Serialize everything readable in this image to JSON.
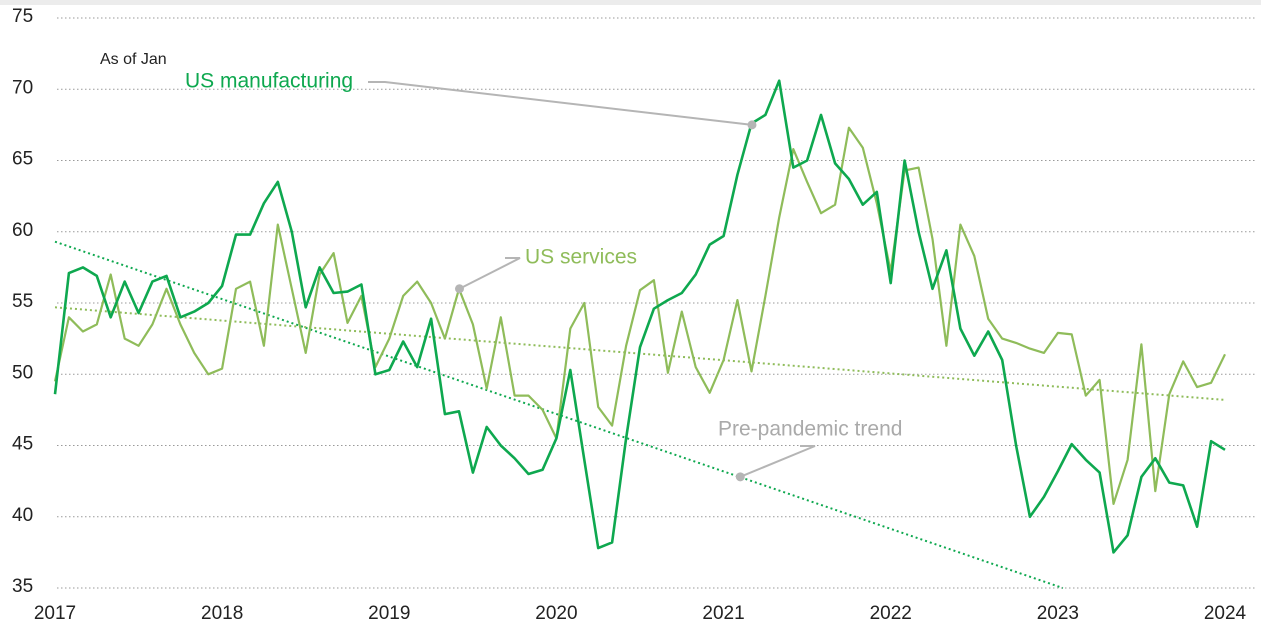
{
  "chart_data": {
    "type": "line",
    "note": "As of Jan",
    "x": [
      2017,
      2017.083,
      2017.167,
      2017.25,
      2017.333,
      2017.417,
      2017.5,
      2017.583,
      2017.667,
      2017.75,
      2017.833,
      2017.917,
      2018,
      2018.083,
      2018.167,
      2018.25,
      2018.333,
      2018.417,
      2018.5,
      2018.583,
      2018.667,
      2018.75,
      2018.833,
      2018.917,
      2019,
      2019.083,
      2019.167,
      2019.25,
      2019.333,
      2019.417,
      2019.5,
      2019.583,
      2019.667,
      2019.75,
      2019.833,
      2019.917,
      2020,
      2020.083,
      2020.167,
      2020.25,
      2020.333,
      2020.417,
      2020.5,
      2020.583,
      2020.667,
      2020.75,
      2020.833,
      2020.917,
      2021,
      2021.083,
      2021.167,
      2021.25,
      2021.333,
      2021.417,
      2021.5,
      2021.583,
      2021.667,
      2021.75,
      2021.833,
      2021.917,
      2022,
      2022.083,
      2022.167,
      2022.25,
      2022.333,
      2022.417,
      2022.5,
      2022.583,
      2022.667,
      2022.75,
      2022.833,
      2022.917,
      2023,
      2023.083,
      2023.167,
      2023.25,
      2023.333,
      2023.417,
      2023.5,
      2023.583,
      2023.667,
      2023.75,
      2023.833,
      2023.917,
      2024
    ],
    "series": [
      {
        "name": "US manufacturing",
        "color": "#0ea84f",
        "label_point": {
          "x": 2021.17,
          "y": 67.5
        },
        "values": [
          48.6,
          57.1,
          57.5,
          56.9,
          54.0,
          56.5,
          54.3,
          56.5,
          56.9,
          54.0,
          54.4,
          55.0,
          56.2,
          59.8,
          59.8,
          62.0,
          63.5,
          60.0,
          54.7,
          57.5,
          55.7,
          55.8,
          56.3,
          50.0,
          50.3,
          52.3,
          50.5,
          53.9,
          47.2,
          47.4,
          43.1,
          46.3,
          45.0,
          44.1,
          43.0,
          43.3,
          45.5,
          50.3,
          44.0,
          37.8,
          38.2,
          45.5,
          51.9,
          54.6,
          55.2,
          55.7,
          57.0,
          59.1,
          59.7,
          64.0,
          67.6,
          68.2,
          70.6,
          64.5,
          65.0,
          68.2,
          64.8,
          63.7,
          61.9,
          62.8,
          56.4,
          65.0,
          60.0,
          56.0,
          58.7,
          53.2,
          51.3,
          53.0,
          51.0,
          45.0,
          40.0,
          41.4,
          43.2,
          45.1,
          44.0,
          43.1,
          37.5,
          38.7,
          42.8,
          44.1,
          42.4,
          42.2,
          39.3,
          45.3,
          44.7
        ]
      },
      {
        "name": "US services",
        "color": "#8fbc5a",
        "label_point": {
          "x": 2019.42,
          "y": 56.0
        },
        "values": [
          49.5,
          54.0,
          53.0,
          53.5,
          57.0,
          52.5,
          52.0,
          53.5,
          56.0,
          53.5,
          51.5,
          50.0,
          50.4,
          56.0,
          56.5,
          52.0,
          60.5,
          56.0,
          51.5,
          57.0,
          58.5,
          53.6,
          55.5,
          50.5,
          52.5,
          55.5,
          56.5,
          55.0,
          52.5,
          56.0,
          53.5,
          49.0,
          54.0,
          48.5,
          48.5,
          47.5,
          45.5,
          53.2,
          55.0,
          47.7,
          46.4,
          52.0,
          55.9,
          56.6,
          50.1,
          54.4,
          50.5,
          48.7,
          51.0,
          55.2,
          50.2,
          55.5,
          61.0,
          65.8,
          63.5,
          61.3,
          61.9,
          67.3,
          65.9,
          62.0,
          57.2,
          64.3,
          64.5,
          59.5,
          52.0,
          60.5,
          58.3,
          53.9,
          52.5,
          52.2,
          51.8,
          51.5,
          52.9,
          52.8,
          48.5,
          49.6,
          40.9,
          44.0,
          52.1,
          41.8,
          48.6,
          50.9,
          49.1,
          49.4,
          51.4
        ]
      }
    ],
    "trend": {
      "name": "Pre-pandemic trend",
      "label_point": {
        "x": 2021.1,
        "y": 42.8
      },
      "lines": [
        {
          "color": "#0ea84f",
          "x": [
            2017,
            2023.03
          ],
          "values": [
            59.3,
            35
          ]
        },
        {
          "color": "#8fbc5a",
          "x": [
            2017,
            2024
          ],
          "values": [
            54.7,
            48.2
          ]
        }
      ]
    },
    "xlim": [
      2017,
      2024
    ],
    "xticks": [
      2017,
      2018,
      2019,
      2020,
      2021,
      2022,
      2023,
      2024
    ],
    "ylim": [
      35,
      75
    ],
    "yticks": [
      35,
      40,
      45,
      50,
      55,
      60,
      65,
      70,
      75
    ],
    "grid": true
  }
}
